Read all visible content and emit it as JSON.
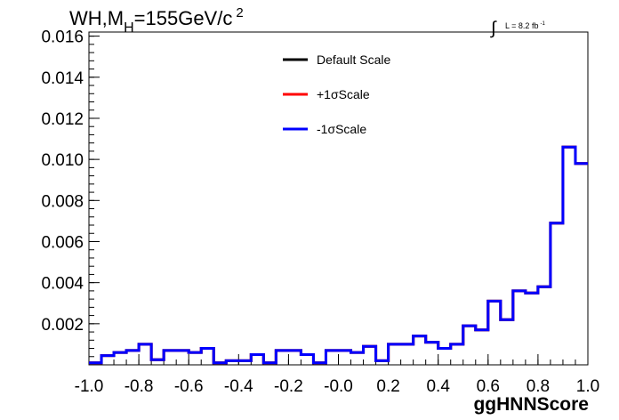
{
  "plot_title": {
    "main": "WH,M",
    "sub": "H",
    "rest": "=155GeV/c",
    "sup": "2"
  },
  "lumi_label": {
    "integral": "∫",
    "text": "L = 8.2 fb",
    "sup": "-1"
  },
  "colors": {
    "default_scale": "#000000",
    "plus_one_sigma": "#ff0000",
    "minus_one_sigma": "#0000ff",
    "frame": "#000000"
  },
  "chart_data": {
    "type": "line",
    "title": "",
    "xlabel": "ggHNNScore",
    "ylabel": "",
    "xlim": [
      -1.0,
      1.0
    ],
    "ylim": [
      0.0,
      0.0162
    ],
    "grid": false,
    "legend_position": "top-center",
    "x_ticks": [
      "-1.0",
      "-0.8",
      "-0.6",
      "-0.4",
      "-0.2",
      "-0.0",
      "0.2",
      "0.4",
      "0.6",
      "0.8",
      "1.0"
    ],
    "x_tick_values": [
      -1.0,
      -0.8,
      -0.6,
      -0.4,
      -0.2,
      0.0,
      0.2,
      0.4,
      0.6,
      0.8,
      1.0
    ],
    "y_ticks": [
      "0.002",
      "0.004",
      "0.006",
      "0.008",
      "0.010",
      "0.012",
      "0.014",
      "0.016"
    ],
    "y_tick_values": [
      0.002,
      0.004,
      0.006,
      0.008,
      0.01,
      0.012,
      0.014,
      0.016
    ],
    "bin_edges": [
      -1.0,
      -0.95,
      -0.9,
      -0.85,
      -0.8,
      -0.75,
      -0.7,
      -0.65,
      -0.6,
      -0.55,
      -0.5,
      -0.45,
      -0.4,
      -0.35,
      -0.3,
      -0.25,
      -0.2,
      -0.15,
      -0.1,
      -0.05,
      0.0,
      0.05,
      0.1,
      0.15,
      0.2,
      0.25,
      0.3,
      0.35,
      0.4,
      0.45,
      0.5,
      0.55,
      0.6,
      0.65,
      0.7,
      0.75,
      0.8,
      0.85,
      0.9,
      0.95,
      1.0
    ],
    "series": [
      {
        "name": "Default Scale",
        "color": "#000000",
        "values": [
          0.0001,
          0.00045,
          0.0006,
          0.0007,
          0.001,
          0.00025,
          0.0007,
          0.0007,
          0.0006,
          0.0008,
          0.0001,
          0.0002,
          0.0002,
          0.0005,
          0.0001,
          0.0007,
          0.0007,
          0.0005,
          0.0001,
          0.0007,
          0.0007,
          0.0006,
          0.0009,
          0.0002,
          0.001,
          0.001,
          0.0014,
          0.0011,
          0.0008,
          0.001,
          0.0019,
          0.0017,
          0.0031,
          0.0022,
          0.0036,
          0.0035,
          0.0038,
          0.0069,
          0.0106,
          0.0098
        ]
      },
      {
        "name": "+1σScale",
        "color": "#ff0000",
        "values": [
          0.0001,
          0.00045,
          0.0006,
          0.0007,
          0.001,
          0.00025,
          0.0007,
          0.0007,
          0.0006,
          0.0008,
          0.0001,
          0.0002,
          0.0002,
          0.0005,
          0.0001,
          0.0007,
          0.0007,
          0.0005,
          0.0001,
          0.0007,
          0.0007,
          0.0006,
          0.0009,
          0.0002,
          0.001,
          0.001,
          0.0014,
          0.0011,
          0.0008,
          0.001,
          0.0019,
          0.0017,
          0.0031,
          0.0022,
          0.0036,
          0.0035,
          0.0038,
          0.0069,
          0.0106,
          0.0098
        ]
      },
      {
        "name": "-1σScale",
        "color": "#0000ff",
        "values": [
          0.0001,
          0.00045,
          0.0006,
          0.0007,
          0.001,
          0.00025,
          0.0007,
          0.0007,
          0.0006,
          0.0008,
          0.0001,
          0.0002,
          0.0002,
          0.0005,
          0.0001,
          0.0007,
          0.0007,
          0.0005,
          0.0001,
          0.0007,
          0.0007,
          0.0006,
          0.0009,
          0.0002,
          0.001,
          0.001,
          0.0014,
          0.0011,
          0.0008,
          0.001,
          0.0019,
          0.0017,
          0.0031,
          0.0022,
          0.0036,
          0.0035,
          0.0038,
          0.0069,
          0.0106,
          0.0098
        ]
      }
    ]
  }
}
